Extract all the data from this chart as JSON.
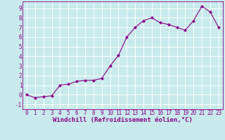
{
  "x": [
    0,
    1,
    2,
    3,
    4,
    5,
    6,
    7,
    8,
    9,
    10,
    11,
    12,
    13,
    14,
    15,
    16,
    17,
    18,
    19,
    20,
    21,
    22,
    23
  ],
  "y": [
    0.0,
    -0.3,
    -0.2,
    -0.1,
    1.0,
    1.1,
    1.4,
    1.5,
    1.5,
    1.7,
    3.0,
    4.1,
    6.0,
    7.0,
    7.7,
    8.0,
    7.5,
    7.3,
    7.0,
    6.7,
    7.7,
    9.2,
    8.6,
    7.0
  ],
  "line_color": "#880088",
  "marker": "D",
  "marker_size": 2,
  "bg_color": "#c8eaec",
  "grid_color": "#b0d8da",
  "xlabel": "Windchill (Refroidissement éolien,°C)",
  "xlim": [
    -0.5,
    23.5
  ],
  "ylim": [
    -1.5,
    9.7
  ],
  "yticks": [
    -1,
    0,
    1,
    2,
    3,
    4,
    5,
    6,
    7,
    8,
    9
  ],
  "xticks": [
    0,
    1,
    2,
    3,
    4,
    5,
    6,
    7,
    8,
    9,
    10,
    11,
    12,
    13,
    14,
    15,
    16,
    17,
    18,
    19,
    20,
    21,
    22,
    23
  ],
  "tick_color": "#880088",
  "label_color": "#880088",
  "tick_fontsize": 5.5,
  "xlabel_fontsize": 6.5
}
